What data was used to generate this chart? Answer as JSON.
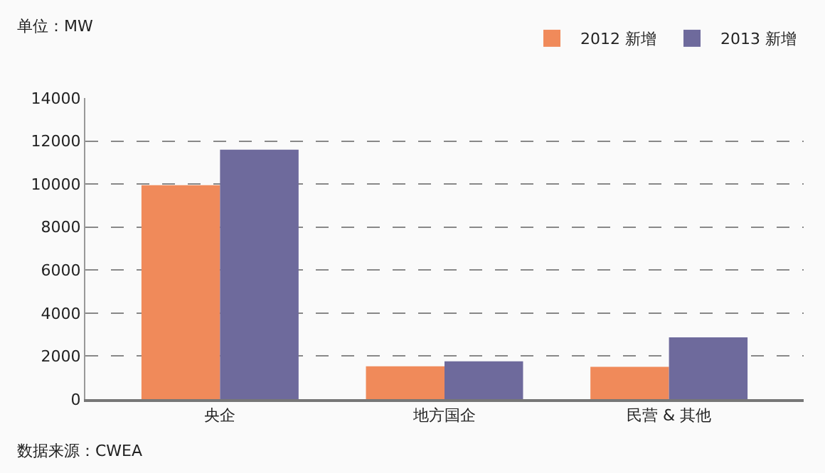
{
  "chart_data": {
    "type": "bar",
    "ylabel": "单位：MW",
    "categories": [
      "央企",
      "地方国企",
      "民营 & 其他"
    ],
    "series": [
      {
        "name": "2012 新增",
        "color": "#f08a5a",
        "values": [
          9950,
          1530,
          1500
        ]
      },
      {
        "name": "2013 新增",
        "color": "#6e6a9c",
        "values": [
          11600,
          1760,
          2870
        ]
      }
    ],
    "ylim": [
      0,
      14000
    ],
    "yticks": [
      0,
      2000,
      4000,
      6000,
      8000,
      10000,
      12000,
      14000
    ],
    "grid": "y",
    "legend": "top right",
    "annotations": [
      "数据来源：CWEA"
    ]
  }
}
